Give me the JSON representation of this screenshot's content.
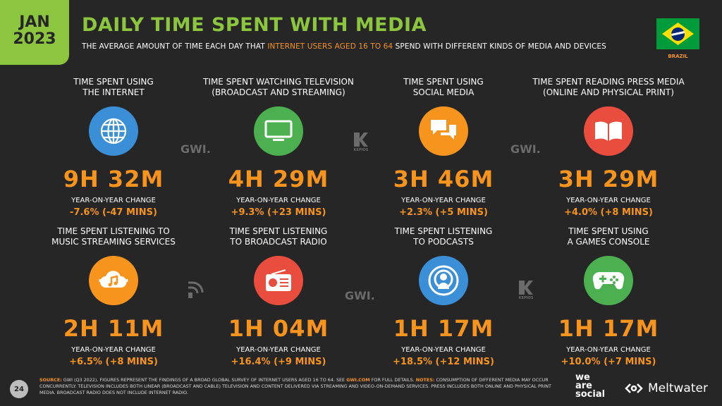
{
  "header": {
    "month": "JAN",
    "year": "2023",
    "title": "DAILY TIME SPENT WITH MEDIA",
    "subtitle_pre": "THE AVERAGE AMOUNT OF TIME EACH DAY THAT ",
    "subtitle_hl": "INTERNET USERS AGED 16 TO 64",
    "subtitle_post": " SPEND WITH DIFFERENT KINDS OF MEDIA AND DEVICES",
    "country": "BRAZIL"
  },
  "stats": [
    {
      "label1": "TIME SPENT USING",
      "label2": "THE INTERNET",
      "value": "9H 32M",
      "yoy_label": "YEAR-ON-YEAR CHANGE",
      "change": "-7.6% (-47 MINS)",
      "icon": "globe-icon"
    },
    {
      "label1": "TIME SPENT WATCHING TELEVISION",
      "label2": "(BROADCAST AND STREAMING)",
      "value": "4H 29M",
      "yoy_label": "YEAR-ON-YEAR CHANGE",
      "change": "+9.3% (+23 MINS)",
      "icon": "television-icon"
    },
    {
      "label1": "TIME SPENT USING",
      "label2": "SOCIAL MEDIA",
      "value": "3H 46M",
      "yoy_label": "YEAR-ON-YEAR CHANGE",
      "change": "+2.3% (+5 MINS)",
      "icon": "chat-bubbles-icon"
    },
    {
      "label1": "TIME SPENT READING PRESS MEDIA",
      "label2": "(ONLINE AND PHYSICAL PRINT)",
      "value": "3H 29M",
      "yoy_label": "YEAR-ON-YEAR CHANGE",
      "change": "+4.0% (+8 MINS)",
      "icon": "open-book-icon"
    },
    {
      "label1": "TIME SPENT LISTENING TO",
      "label2": "MUSIC STREAMING SERVICES",
      "value": "2H 11M",
      "yoy_label": "YEAR-ON-YEAR CHANGE",
      "change": "+6.5% (+8 MINS)",
      "icon": "music-cloud-icon"
    },
    {
      "label1": "TIME SPENT LISTENING",
      "label2": "TO BROADCAST RADIO",
      "value": "1H 04M",
      "yoy_label": "YEAR-ON-YEAR CHANGE",
      "change": "+16.4% (+9 MINS)",
      "icon": "radio-icon"
    },
    {
      "label1": "TIME SPENT LISTENING",
      "label2": "TO PODCASTS",
      "value": "1H 17M",
      "yoy_label": "YEAR-ON-YEAR CHANGE",
      "change": "+18.5% (+12 MINS)",
      "icon": "podcast-icon"
    },
    {
      "label1": "TIME SPENT USING",
      "label2": "A GAMES CONSOLE",
      "value": "1H 17M",
      "yoy_label": "YEAR-ON-YEAR CHANGE",
      "change": "+10.0% (+7 MINS)",
      "icon": "gamepad-icon"
    }
  ],
  "watermarks": {
    "gwi": "GWI.",
    "kepios": "KEPIOS"
  },
  "footer": {
    "page": "24",
    "source_label": "SOURCE:",
    "source_text": " GWI (Q3 2022). FIGURES REPRESENT THE FINDINGS OF A BROAD GLOBAL SURVEY OF INTERNET USERS AGED 16 TO 64. SEE ",
    "source_link": "GWI.COM",
    "source_text2": " FOR FULL DETAILS. ",
    "notes_label": "NOTES:",
    "notes_text": " CONSUMPTION OF DIFFERENT MEDIA MAY OCCUR CONCURRENTLY. TELEVISION INCLUDES BOTH LINEAR (BROADCAST AND CABLE) TELEVISION AND CONTENT DELIVERED VIA STREAMING AND VIDEO-ON-DEMAND SERVICES. PRESS INCLUDES BOTH ONLINE AND PHYSICAL PRINT MEDIA. BROADCAST RADIO DOES NOT INCLUDE INTERNET RADIO.",
    "brand1_l1": "we",
    "brand1_l2": "are",
    "brand1_l3": "social",
    "brand2": "Meltwater"
  },
  "colors": {
    "accent_green": "#8cc63f",
    "accent_orange": "#f7941d",
    "background": "#262626"
  }
}
